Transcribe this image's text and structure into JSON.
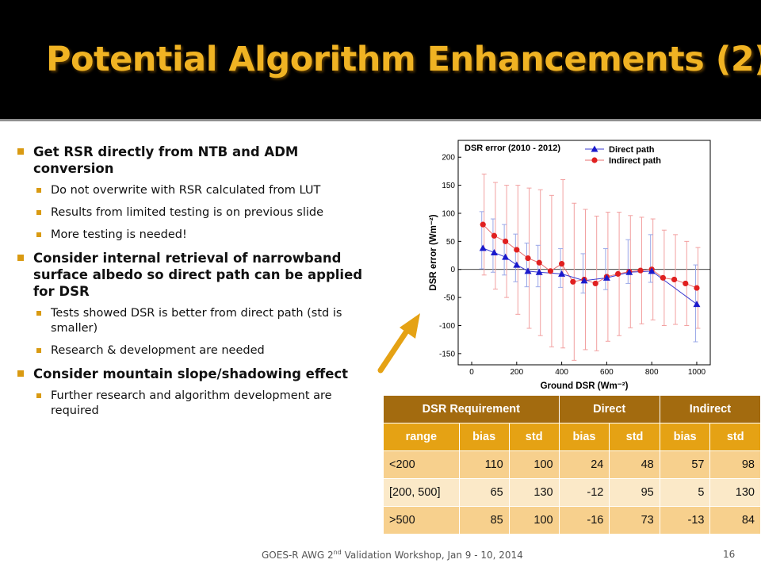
{
  "title": "Potential Algorithm Enhancements (2)",
  "bullets": [
    {
      "level": 1,
      "text": "Get RSR directly from NTB and ADM conversion"
    },
    {
      "level": 2,
      "text": "Do not overwrite with RSR calculated from LUT"
    },
    {
      "level": 2,
      "text": "Results from limited testing is on previous slide"
    },
    {
      "level": 2,
      "text": "More testing is needed!"
    },
    {
      "level": 1,
      "text": "Consider internal retrieval of narrowband surface albedo so direct path can be applied for DSR"
    },
    {
      "level": 2,
      "text": "Tests showed DSR is better from direct path (std is smaller)"
    },
    {
      "level": 2,
      "text": "Research & development are needed"
    },
    {
      "level": 1,
      "text": "Consider mountain slope/shadowing effect"
    },
    {
      "level": 2,
      "text": "Further research and algorithm development are required"
    }
  ],
  "chart_data": {
    "type": "line",
    "title": "DSR error (2010 - 2012)",
    "xlabel": "Ground DSR (Wm⁻²)",
    "ylabel": "DSR error (Wm⁻²)",
    "xlim": [
      -60,
      1060
    ],
    "ylim": [
      -170,
      230
    ],
    "xticks": [
      0,
      200,
      400,
      600,
      800,
      1000
    ],
    "yticks": [
      -150,
      -100,
      -50,
      0,
      50,
      100,
      150,
      200
    ],
    "legend_position": "top-right",
    "series": [
      {
        "name": "Direct path",
        "color": "#1a1acc",
        "marker": "triangle",
        "x": [
          50,
          100,
          150,
          200,
          250,
          300,
          400,
          500,
          600,
          700,
          800,
          1000
        ],
        "y": [
          38,
          30,
          22,
          8,
          -3,
          -5,
          -8,
          -20,
          -15,
          -5,
          -3,
          -62
        ],
        "err_hi": [
          65,
          60,
          58,
          55,
          50,
          48,
          45,
          48,
          52,
          58,
          65,
          70
        ],
        "err_lo": [
          37,
          35,
          32,
          30,
          28,
          26,
          24,
          22,
          21,
          20,
          20,
          67
        ]
      },
      {
        "name": "Indirect path",
        "color": "#e02020",
        "marker": "circle",
        "x": [
          50,
          100,
          150,
          200,
          250,
          300,
          350,
          400,
          450,
          500,
          550,
          600,
          650,
          700,
          750,
          800,
          850,
          900,
          950,
          1000
        ],
        "y": [
          80,
          60,
          50,
          35,
          20,
          12,
          -3,
          10,
          -22,
          -18,
          -25,
          -13,
          -8,
          -4,
          -2,
          0,
          -15,
          -18,
          -25,
          -33
        ],
        "err": [
          90,
          95,
          100,
          115,
          125,
          130,
          135,
          150,
          140,
          125,
          120,
          115,
          110,
          100,
          95,
          90,
          85,
          80,
          75,
          72
        ]
      }
    ]
  },
  "table": {
    "rows": [
      [
        "DSR Requirement",
        "Direct",
        "Indirect"
      ],
      [
        "range",
        "bias",
        "std",
        "bias",
        "std",
        "bias",
        "std"
      ],
      [
        "<200",
        "110",
        "100",
        "24",
        "48",
        "57",
        "98"
      ],
      [
        "[200, 500]",
        "65",
        "130",
        "-12",
        "95",
        "5",
        "130"
      ],
      [
        ">500",
        "85",
        "100",
        "-16",
        "73",
        "-13",
        "84"
      ]
    ]
  },
  "footer": {
    "prefix": "GOES-R AWG 2",
    "superscript": "nd",
    "suffix": " Validation Workshop, Jan 9 - 10, 2014",
    "page": "16"
  },
  "colors": {
    "title": "#f0b323",
    "accent": "#d99a12",
    "table_head": "#a36b0f",
    "table_sub": "#e5a214",
    "table_row": "#f7d08d"
  }
}
